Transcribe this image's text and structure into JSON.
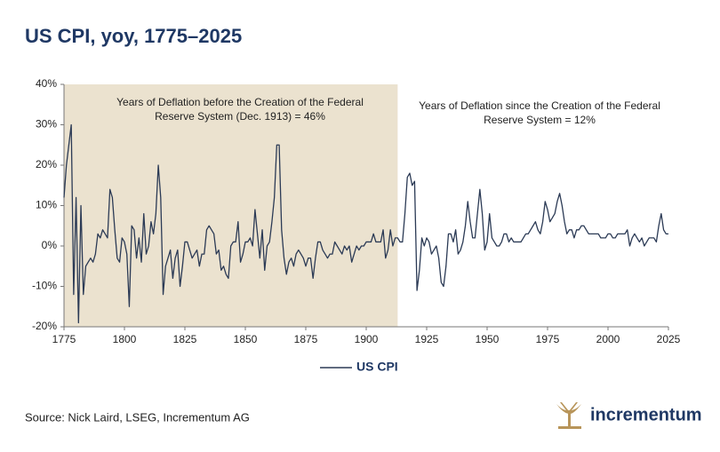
{
  "chart_data": {
    "type": "line",
    "title": "US CPI, yoy, 1775–2025",
    "annotations": [
      "Years of Deflation before the Creation of the Federal",
      "Reserve System (Dec. 1913) = 46%",
      "Years of Deflation since the Creation of the Federal",
      "Reserve System = 12%"
    ],
    "shade_xlim": [
      1775,
      1913
    ],
    "shade_color": "#ebe2cf",
    "x": [
      1775,
      1776,
      1777,
      1778,
      1779,
      1780,
      1781,
      1782,
      1783,
      1784,
      1785,
      1786,
      1787,
      1788,
      1789,
      1790,
      1791,
      1792,
      1793,
      1794,
      1795,
      1796,
      1797,
      1798,
      1799,
      1800,
      1801,
      1802,
      1803,
      1804,
      1805,
      1806,
      1807,
      1808,
      1809,
      1810,
      1811,
      1812,
      1813,
      1814,
      1815,
      1816,
      1817,
      1818,
      1819,
      1820,
      1821,
      1822,
      1823,
      1824,
      1825,
      1826,
      1827,
      1828,
      1829,
      1830,
      1831,
      1832,
      1833,
      1834,
      1835,
      1836,
      1837,
      1838,
      1839,
      1840,
      1841,
      1842,
      1843,
      1844,
      1845,
      1846,
      1847,
      1848,
      1849,
      1850,
      1851,
      1852,
      1853,
      1854,
      1855,
      1856,
      1857,
      1858,
      1859,
      1860,
      1861,
      1862,
      1863,
      1864,
      1865,
      1866,
      1867,
      1868,
      1869,
      1870,
      1871,
      1872,
      1873,
      1874,
      1875,
      1876,
      1877,
      1878,
      1879,
      1880,
      1881,
      1882,
      1883,
      1884,
      1885,
      1886,
      1887,
      1888,
      1889,
      1890,
      1891,
      1892,
      1893,
      1894,
      1895,
      1896,
      1897,
      1898,
      1899,
      1900,
      1901,
      1902,
      1903,
      1904,
      1905,
      1906,
      1907,
      1908,
      1909,
      1910,
      1911,
      1912,
      1913,
      1914,
      1915,
      1916,
      1917,
      1918,
      1919,
      1920,
      1921,
      1922,
      1923,
      1924,
      1925,
      1926,
      1927,
      1928,
      1929,
      1930,
      1931,
      1932,
      1933,
      1934,
      1935,
      1936,
      1937,
      1938,
      1939,
      1940,
      1941,
      1942,
      1943,
      1944,
      1945,
      1946,
      1947,
      1948,
      1949,
      1950,
      1951,
      1952,
      1953,
      1954,
      1955,
      1956,
      1957,
      1958,
      1959,
      1960,
      1961,
      1962,
      1963,
      1964,
      1965,
      1966,
      1967,
      1968,
      1969,
      1970,
      1971,
      1972,
      1973,
      1974,
      1975,
      1976,
      1977,
      1978,
      1979,
      1980,
      1981,
      1982,
      1983,
      1984,
      1985,
      1986,
      1987,
      1988,
      1989,
      1990,
      1991,
      1992,
      1993,
      1994,
      1995,
      1996,
      1997,
      1998,
      1999,
      2000,
      2001,
      2002,
      2003,
      2004,
      2005,
      2006,
      2007,
      2008,
      2009,
      2010,
      2011,
      2012,
      2013,
      2014,
      2015,
      2016,
      2017,
      2018,
      2019,
      2020,
      2021,
      2022,
      2023,
      2024,
      2025
    ],
    "series": [
      {
        "name": "US CPI",
        "color": "#2b3a55",
        "values": [
          12,
          20,
          25,
          30,
          -12,
          12,
          -19,
          10,
          -12,
          -5,
          -4,
          -3,
          -4,
          -2,
          3,
          2,
          4,
          3,
          2,
          14,
          12,
          4,
          -3,
          -4,
          2,
          1,
          -2,
          -15,
          5,
          4,
          -3,
          2,
          -4,
          8,
          -2,
          0,
          6,
          3,
          8,
          20,
          12,
          -12,
          -5,
          -3,
          -1,
          -8,
          -3,
          -1,
          -10,
          -5,
          1,
          1,
          -1,
          -3,
          -2,
          -1,
          -5,
          -2,
          -2,
          4,
          5,
          4,
          3,
          -2,
          -1,
          -6,
          -5,
          -7,
          -8,
          0,
          1,
          1,
          6,
          -4,
          -2,
          1,
          1,
          2,
          0,
          9,
          3,
          -3,
          4,
          -6,
          0,
          1,
          6,
          12,
          25,
          25,
          4,
          -3,
          -7,
          -4,
          -3,
          -5,
          -2,
          -1,
          -2,
          -3,
          -5,
          -3,
          -3,
          -8,
          -3,
          1,
          1,
          -1,
          -2,
          -3,
          -2,
          -2,
          1,
          0,
          -1,
          -2,
          0,
          -1,
          0,
          -4,
          -2,
          0,
          -1,
          0,
          0,
          1,
          1,
          1,
          3,
          1,
          1,
          1,
          4,
          -3,
          -1,
          4,
          0,
          2,
          2,
          1,
          1,
          8,
          17,
          18,
          15,
          16,
          -11,
          -6,
          2,
          0,
          2,
          1,
          -2,
          -1,
          0,
          -3,
          -9,
          -10,
          -5,
          3,
          3,
          1,
          4,
          -2,
          -1,
          1,
          5,
          11,
          6,
          2,
          2,
          8,
          14,
          8,
          -1,
          1,
          8,
          2,
          1,
          0,
          0,
          1,
          3,
          3,
          1,
          2,
          1,
          1,
          1,
          1,
          2,
          3,
          3,
          4,
          5,
          6,
          4,
          3,
          6,
          11,
          9,
          6,
          7,
          8,
          11,
          13,
          10,
          6,
          3,
          4,
          4,
          2,
          4,
          4,
          5,
          5,
          4,
          3,
          3,
          3,
          3,
          3,
          2,
          2,
          2,
          3,
          3,
          2,
          2,
          3,
          3,
          3,
          3,
          4,
          0,
          2,
          3,
          2,
          1,
          2,
          0,
          1,
          2,
          2,
          2,
          1,
          5,
          8,
          4,
          3,
          3
        ]
      }
    ],
    "xlim": [
      1775,
      2025
    ],
    "xticks": [
      1775,
      1800,
      1825,
      1850,
      1875,
      1900,
      1925,
      1950,
      1975,
      2000,
      2025
    ],
    "ylim": [
      -20,
      40
    ],
    "yticks": [
      {
        "value": -20,
        "label": "-20%"
      },
      {
        "value": -10,
        "label": "-10%"
      },
      {
        "value": 0,
        "label": "0%"
      },
      {
        "value": 10,
        "label": "10%"
      },
      {
        "value": 20,
        "label": "20%"
      },
      {
        "value": 30,
        "label": "30%"
      },
      {
        "value": 40,
        "label": "40%"
      }
    ]
  },
  "source": "Source: Nick Laird, LSEG, Incrementum AG",
  "logo": "incrementum"
}
